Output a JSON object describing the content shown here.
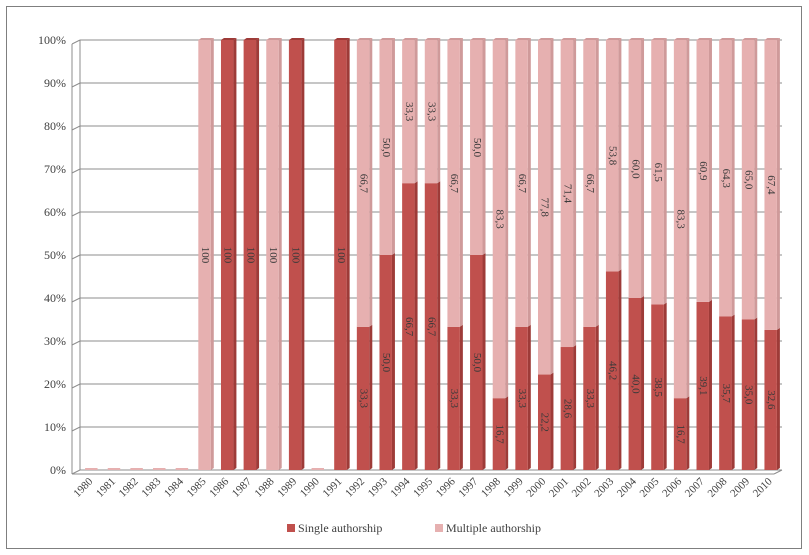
{
  "chart_data": {
    "type": "bar",
    "stacked": true,
    "categories": [
      "1980",
      "1981",
      "1982",
      "1983",
      "1984",
      "1985",
      "1986",
      "1987",
      "1988",
      "1989",
      "1990",
      "1991",
      "1992",
      "1993",
      "1994",
      "1995",
      "1996",
      "1997",
      "1998",
      "1999",
      "2000",
      "2001",
      "2002",
      "2003",
      "2004",
      "2005",
      "2006",
      "2007",
      "2008",
      "2009",
      "2010"
    ],
    "series": [
      {
        "name": "Single authorship",
        "color": "#c0504d",
        "values": [
          0,
          0,
          0,
          0,
          0,
          0,
          100,
          100,
          0,
          100,
          0,
          100,
          33.3,
          50.0,
          66.7,
          66.7,
          33.3,
          50.0,
          16.7,
          33.3,
          22.2,
          28.6,
          33.3,
          46.2,
          40.0,
          38.5,
          16.7,
          39.1,
          35.7,
          35.0,
          32.6
        ],
        "labels": [
          "",
          "",
          "",
          "",
          "",
          "",
          "100",
          "100",
          "",
          "100",
          "",
          "100",
          "33,3",
          "50,0",
          "66,7",
          "66,7",
          "33,3",
          "50,0",
          "16,7",
          "33,3",
          "22,2",
          "28,6",
          "33,3",
          "46,2",
          "40,0",
          "38,5",
          "16,7",
          "39,1",
          "35,7",
          "35,0",
          "32,6"
        ]
      },
      {
        "name": "Multiple authorship",
        "color": "#e6b0b0",
        "values": [
          0,
          0,
          0,
          0,
          0,
          100,
          0,
          0,
          100,
          0,
          0,
          0,
          66.7,
          50.0,
          33.3,
          33.3,
          66.7,
          50.0,
          83.3,
          66.7,
          77.8,
          71.4,
          66.7,
          53.8,
          60.0,
          61.5,
          83.3,
          60.9,
          64.3,
          65.0,
          67.4
        ],
        "labels": [
          "",
          "",
          "",
          "",
          "",
          "100",
          "",
          "",
          "100",
          "",
          "",
          "",
          "66,7",
          "50,0",
          "33,3",
          "33,3",
          "66,7",
          "50,0",
          "83,3",
          "66,7",
          "77,8",
          "71,4",
          "66,7",
          "53,8",
          "60,0",
          "61,5",
          "83,3",
          "60,9",
          "64,3",
          "65,0",
          "67,4"
        ]
      }
    ],
    "ylim": [
      0,
      100
    ],
    "yticks": [
      "0%",
      "10%",
      "20%",
      "30%",
      "40%",
      "50%",
      "60%",
      "70%",
      "80%",
      "90%",
      "100%"
    ],
    "grid": true,
    "legend_position": "bottom",
    "title": "",
    "xlabel": "",
    "ylabel": ""
  },
  "colors": {
    "grid": "#8c8c8c",
    "axis": "#8c8c8c",
    "single_dark": "#9e3b38",
    "multiple_dark": "#cf9a9a"
  }
}
